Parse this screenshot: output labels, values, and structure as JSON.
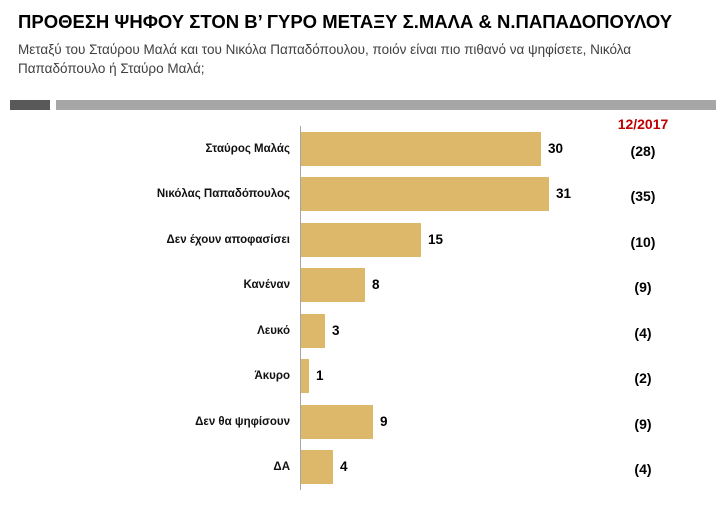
{
  "chart_data": {
    "type": "bar",
    "orientation": "horizontal",
    "title": "ΠΡΟΘΕΣΗ ΨΗΦΟΥ ΣΤΟΝ Β’ ΓΥΡΟ ΜΕΤΑΞΥ Σ.ΜΑΛΑ & Ν.ΠΑΠΑΔΟΠΟΥΛΟΥ",
    "subtitle": "Μεταξύ του Σταύρου Μαλά και του Νικόλα Παπαδόπουλου, ποιόν είναι πιο πιθανό να ψηφίσετε, Νικόλα Παπαδόπουλο ή Σταύρο Μαλά;",
    "xlabel": "",
    "ylabel": "",
    "categories": [
      "Σταύρος Μαλάς",
      "Νικόλας Παπαδόπουλος",
      "Δεν έχουν αποφασίσει",
      "Κανέναν",
      "Λευκό",
      "Άκυρο",
      "Δεν θα ψηφίσουν",
      "ΔΑ"
    ],
    "series": [
      {
        "values": [
          30,
          31,
          15,
          8,
          3,
          1,
          9,
          4
        ],
        "marks": "bar",
        "data_labels": true,
        "color": "#DDB76A"
      },
      {
        "name": "12/2017",
        "values": [
          28,
          35,
          10,
          9,
          4,
          2,
          9,
          4
        ],
        "marks": "text-in-parentheses",
        "color": "#000000",
        "name_color": "#C00000"
      }
    ],
    "xlim": [
      0,
      35
    ],
    "grid": false,
    "legend": "none",
    "x_axis_visible": false
  },
  "decor": {
    "header_rule_colors": [
      "#595959",
      "#A6A6A6"
    ],
    "axis_color": "#A6A6A6"
  }
}
